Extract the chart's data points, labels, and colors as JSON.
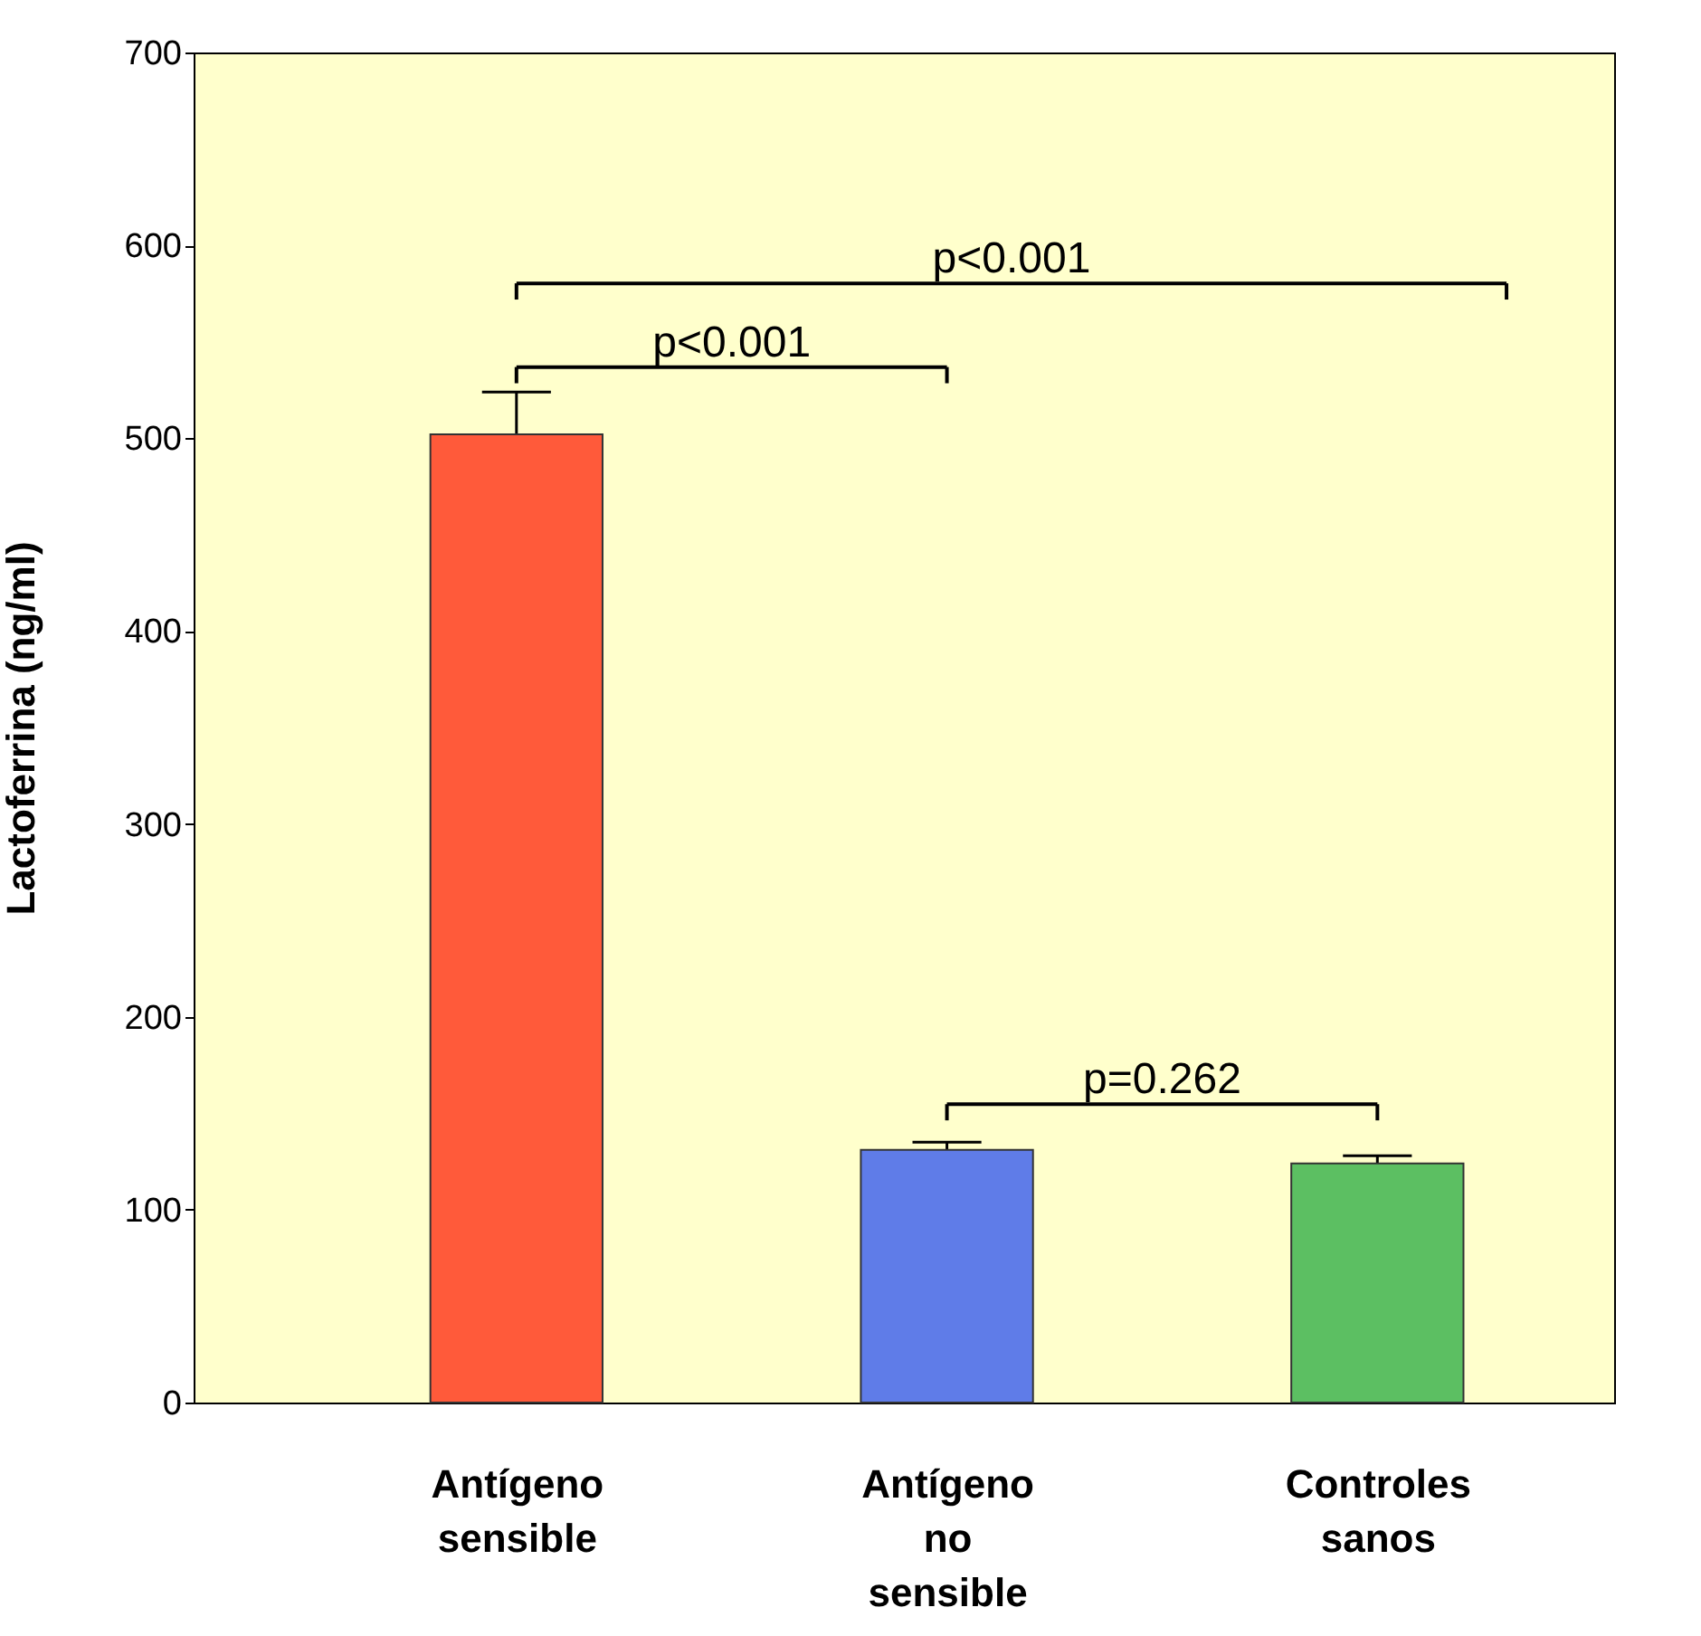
{
  "chart_data": {
    "type": "bar",
    "ylabel": "Lactoferrina (ng/ml)",
    "categories": [
      "Antígeno sensible",
      "Antígeno no sensible",
      "Controles sanos"
    ],
    "values": [
      502,
      131,
      124
    ],
    "errors": [
      22,
      4,
      4
    ],
    "colors": [
      "#ff5a3a",
      "#5f7ce8",
      "#5cbf62"
    ],
    "ylim": [
      0,
      700
    ],
    "yticks": [
      0,
      100,
      200,
      300,
      400,
      500,
      600,
      700
    ],
    "annotations": [
      "p<0.001",
      "p<0.001",
      "p=0.262"
    ]
  }
}
